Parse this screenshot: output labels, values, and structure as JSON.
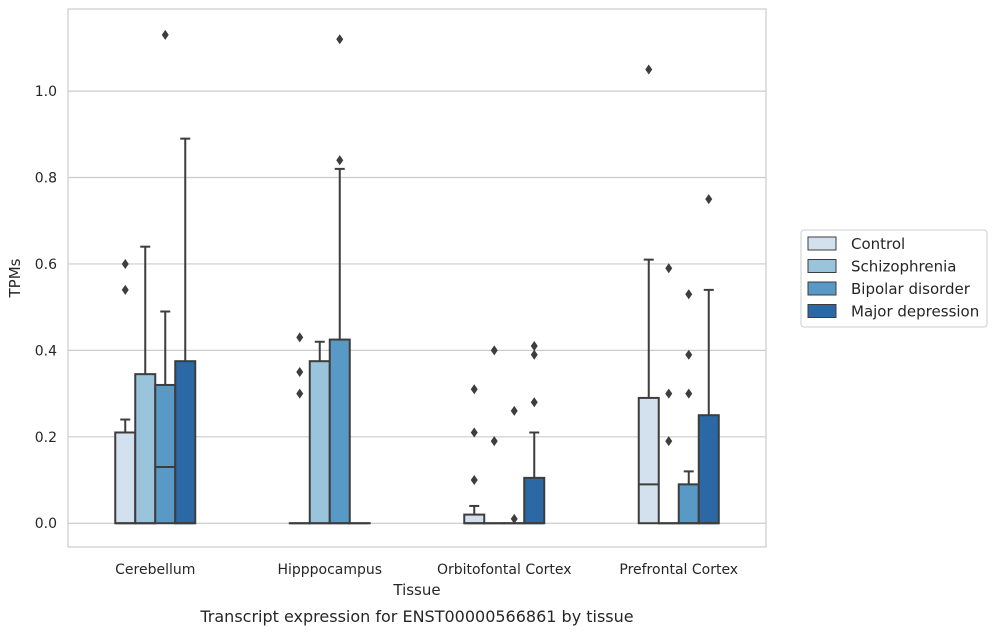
{
  "caption": "Transcript expression for ENST00000566861 by tissue",
  "chart_data": {
    "type": "box",
    "xlabel": "Tissue",
    "ylabel": "TPMs",
    "ylim": [
      -0.055,
      1.19
    ],
    "yticks": [
      "0.0",
      "0.2",
      "0.4",
      "0.6",
      "0.8",
      "1.0"
    ],
    "ytick_values": [
      0.0,
      0.2,
      0.4,
      0.6,
      0.8,
      1.0
    ],
    "grid": "horizontal",
    "legend_position": "right",
    "categories": [
      "Cerebellum",
      "Hipppocampus",
      "Orbitofontal Cortex",
      "Prefrontal Cortex"
    ],
    "series": [
      {
        "name": "Control",
        "color": "#d3e1ef",
        "boxes": [
          {
            "q1": 0.0,
            "median": 0.0,
            "q3": 0.21,
            "whisker_low": 0.0,
            "whisker_high": 0.24,
            "outliers": [
              0.54,
              0.6
            ]
          },
          {
            "q1": 0.0,
            "median": 0.0,
            "q3": 0.0,
            "whisker_low": 0.0,
            "whisker_high": 0.0,
            "outliers": [
              0.3,
              0.35,
              0.43
            ]
          },
          {
            "q1": 0.0,
            "median": 0.0,
            "q3": 0.02,
            "whisker_low": 0.0,
            "whisker_high": 0.04,
            "outliers": [
              0.1,
              0.21,
              0.31
            ]
          },
          {
            "q1": 0.0,
            "median": 0.09,
            "q3": 0.29,
            "whisker_low": 0.0,
            "whisker_high": 0.61,
            "outliers": [
              1.05
            ]
          }
        ]
      },
      {
        "name": "Schizophrenia",
        "color": "#9ac3dc",
        "boxes": [
          {
            "q1": 0.0,
            "median": 0.0,
            "q3": 0.345,
            "whisker_low": 0.0,
            "whisker_high": 0.64,
            "outliers": []
          },
          {
            "q1": 0.0,
            "median": 0.0,
            "q3": 0.375,
            "whisker_low": 0.0,
            "whisker_high": 0.42,
            "outliers": []
          },
          {
            "q1": 0.0,
            "median": 0.0,
            "q3": 0.0,
            "whisker_low": 0.0,
            "whisker_high": 0.0,
            "outliers": [
              0.19,
              0.4
            ]
          },
          {
            "q1": 0.0,
            "median": 0.0,
            "q3": 0.0,
            "whisker_low": 0.0,
            "whisker_high": 0.0,
            "outliers": [
              0.19,
              0.3,
              0.59
            ]
          }
        ]
      },
      {
        "name": "Bipolar disorder",
        "color": "#5999c6",
        "boxes": [
          {
            "q1": 0.0,
            "median": 0.13,
            "q3": 0.32,
            "whisker_low": 0.0,
            "whisker_high": 0.49,
            "outliers": [
              1.13
            ]
          },
          {
            "q1": 0.0,
            "median": 0.0,
            "q3": 0.425,
            "whisker_low": 0.0,
            "whisker_high": 0.82,
            "outliers": [
              0.84,
              1.12
            ]
          },
          {
            "q1": 0.0,
            "median": 0.0,
            "q3": 0.0,
            "whisker_low": 0.0,
            "whisker_high": 0.0,
            "outliers": [
              0.01,
              0.26
            ]
          },
          {
            "q1": 0.0,
            "median": 0.0,
            "q3": 0.09,
            "whisker_low": 0.0,
            "whisker_high": 0.12,
            "outliers": [
              0.3,
              0.39,
              0.53
            ]
          }
        ]
      },
      {
        "name": "Major depression",
        "color": "#2a69a5",
        "boxes": [
          {
            "q1": 0.0,
            "median": 0.0,
            "q3": 0.375,
            "whisker_low": 0.0,
            "whisker_high": 0.89,
            "outliers": []
          },
          {
            "q1": 0.0,
            "median": 0.0,
            "q3": 0.0,
            "whisker_low": 0.0,
            "whisker_high": 0.0,
            "outliers": []
          },
          {
            "q1": 0.0,
            "median": 0.0,
            "q3": 0.105,
            "whisker_low": 0.0,
            "whisker_high": 0.21,
            "outliers": [
              0.28,
              0.39,
              0.41
            ]
          },
          {
            "q1": 0.0,
            "median": 0.0,
            "q3": 0.25,
            "whisker_low": 0.0,
            "whisker_high": 0.54,
            "outliers": [
              0.75
            ]
          }
        ]
      }
    ]
  }
}
